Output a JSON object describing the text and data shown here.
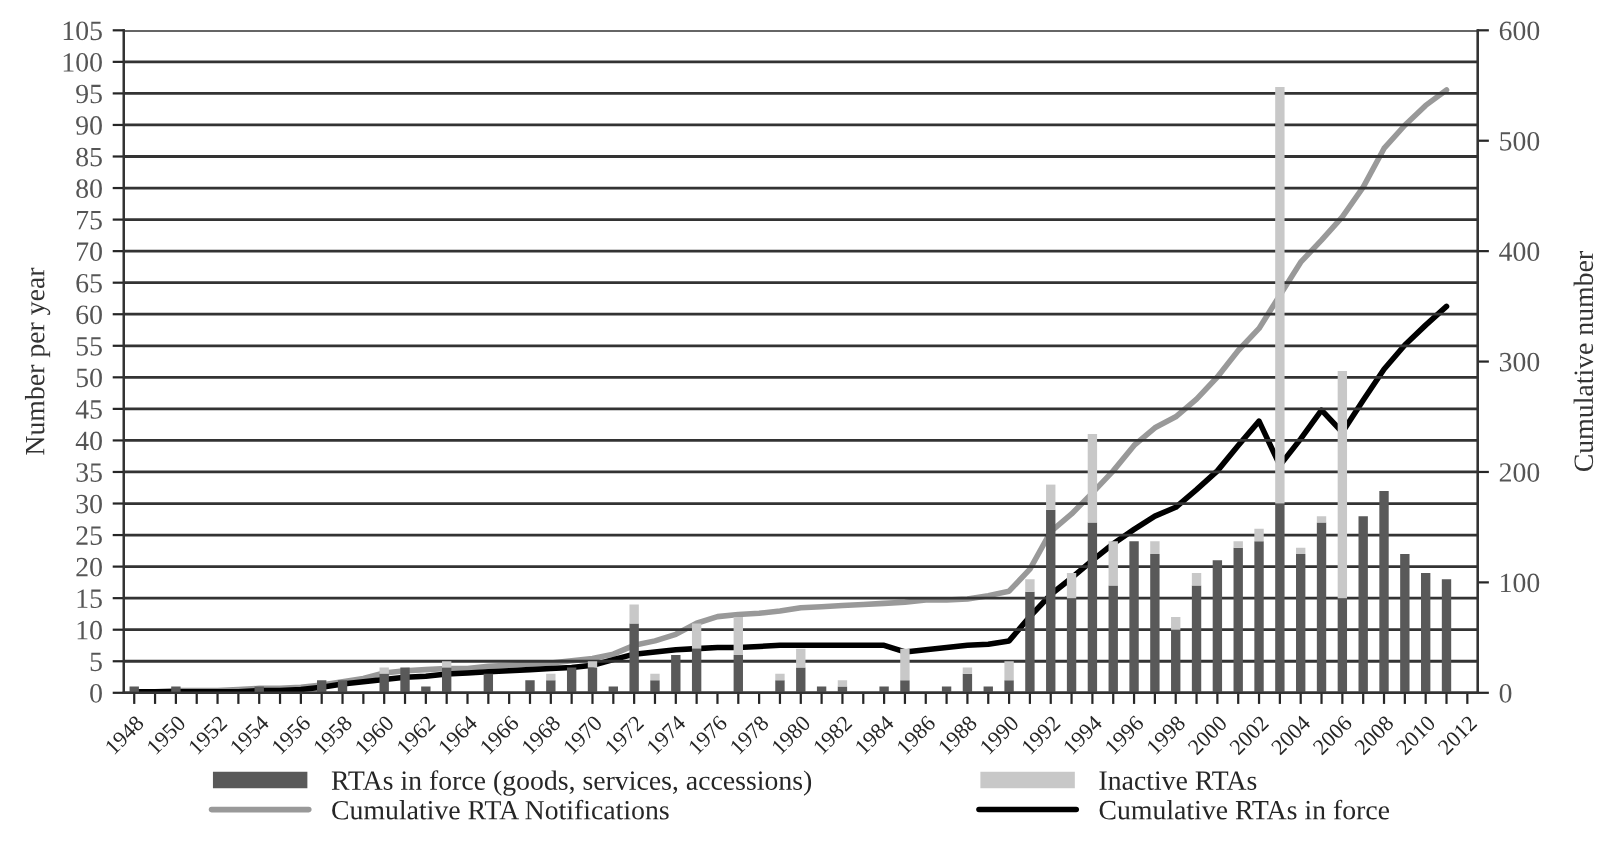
{
  "chart_data": {
    "type": "bar",
    "stacked": true,
    "grid": "y",
    "legend": "bottom",
    "marker": "none",
    "line_style": "solid",
    "ylabel": "Number per year",
    "y2label": "Cumulative number",
    "ylim": [
      0,
      105
    ],
    "yticks": [
      0,
      5,
      10,
      15,
      20,
      25,
      30,
      35,
      40,
      45,
      50,
      55,
      60,
      65,
      70,
      75,
      80,
      85,
      90,
      95,
      100,
      105
    ],
    "y2lim": [
      0,
      600
    ],
    "y2ticks": [
      0,
      100,
      200,
      300,
      400,
      500,
      600
    ],
    "categories": [
      "1948",
      null,
      "1950",
      null,
      "1952",
      null,
      "1954",
      null,
      "1956",
      null,
      "1958",
      null,
      "1960",
      null,
      "1962",
      null,
      "1964",
      null,
      "1966",
      null,
      "1968",
      null,
      "1970",
      null,
      "1972",
      null,
      "1974",
      null,
      "1976",
      null,
      "1978",
      null,
      "1980",
      null,
      "1982",
      null,
      "1984",
      null,
      "1986",
      null,
      "1988",
      null,
      "1990",
      null,
      "1992",
      null,
      "1994",
      null,
      "1996",
      null,
      "1998",
      null,
      "2000",
      null,
      "2002",
      null,
      "2004",
      null,
      "2006",
      null,
      "2008",
      null,
      "2010",
      null,
      "2012"
    ],
    "series": [
      {
        "name": "RTAs in force (goods, services, accessions)",
        "color": "#595959",
        "values": [
          1,
          null,
          1,
          null,
          null,
          null,
          1,
          null,
          null,
          2,
          2,
          null,
          3,
          4,
          1,
          4,
          null,
          3,
          null,
          2,
          2,
          4,
          4,
          1,
          11,
          2,
          6,
          7,
          null,
          6,
          null,
          2,
          4,
          1,
          1,
          null,
          1,
          2,
          null,
          1,
          3,
          1,
          2,
          16,
          29,
          15,
          27,
          17,
          24,
          22,
          10,
          17,
          21,
          23,
          24,
          30,
          22,
          27,
          15,
          28,
          32,
          22,
          19,
          18,
          null
        ]
      },
      {
        "name": "Inactive RTAs",
        "color": "#c8c8c8",
        "values": [
          null,
          null,
          null,
          null,
          null,
          null,
          null,
          null,
          null,
          null,
          null,
          null,
          1,
          null,
          null,
          1,
          null,
          null,
          null,
          null,
          1,
          null,
          1,
          null,
          3,
          1,
          null,
          4,
          null,
          6,
          null,
          1,
          3,
          null,
          1,
          null,
          null,
          5,
          null,
          null,
          1,
          null,
          3,
          2,
          4,
          4,
          14,
          7,
          null,
          2,
          2,
          2,
          null,
          1,
          2,
          66,
          1,
          1,
          36,
          null,
          null,
          null,
          null,
          null,
          null
        ]
      },
      {
        "name": "Cumulative RTA Notifications",
        "type": "line",
        "axis": "y2",
        "color": "#999999",
        "values": [
          1,
          1,
          2,
          2,
          2,
          3,
          4,
          4,
          5,
          7,
          10,
          13,
          18,
          20,
          21,
          22,
          22,
          24,
          25,
          26,
          27,
          29,
          31,
          35,
          43,
          47,
          53,
          63,
          69,
          71,
          72,
          74,
          77,
          78,
          79,
          80,
          81,
          82,
          84,
          84,
          85,
          88,
          92,
          112,
          146,
          162,
          181,
          201,
          224,
          240,
          250,
          266,
          286,
          310,
          330,
          360,
          390,
          410,
          431,
          458,
          493,
          514,
          532,
          546,
          null
        ]
      },
      {
        "name": "Cumulative RTAs in force",
        "type": "line",
        "axis": "y2",
        "color": "#000000",
        "values": [
          1,
          1,
          1,
          1,
          1,
          1,
          2,
          2,
          3,
          5,
          8,
          10,
          12,
          14,
          15,
          17,
          18,
          19,
          20,
          21,
          22,
          23,
          25,
          30,
          35,
          37,
          39,
          40,
          41,
          41,
          42,
          43,
          43,
          43,
          43,
          43,
          43,
          37,
          39,
          41,
          43,
          44,
          47,
          69,
          89,
          104,
          120,
          135,
          148,
          160,
          168,
          184,
          201,
          224,
          246,
          206,
          230,
          256,
          236,
          265,
          293,
          315,
          333,
          350,
          null
        ]
      }
    ]
  }
}
